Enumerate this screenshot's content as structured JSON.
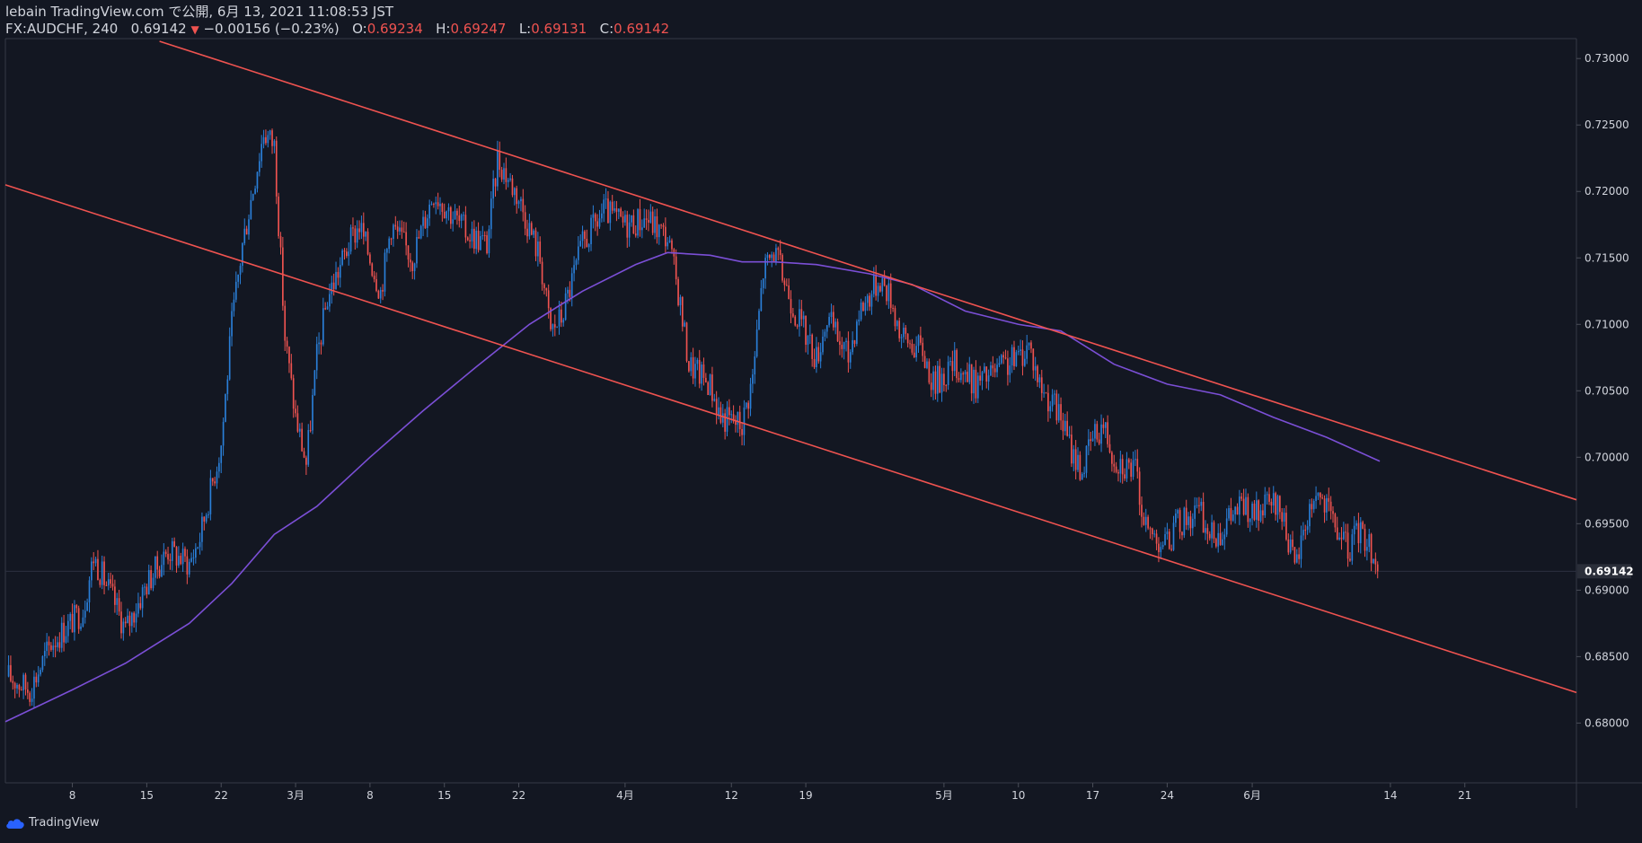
{
  "header": {
    "published": "lebain TradingView.com で公開, 6月 13, 2021 11:08:53 JST",
    "symbol": "FX:AUDCHF, 240",
    "last": "0.69142",
    "change": "−0.00156 (−0.23%)",
    "o_label": "O:",
    "o_value": "0.69234",
    "h_label": "H:",
    "h_value": "0.69247",
    "l_label": "L:",
    "l_value": "0.69131",
    "c_label": "C:",
    "c_value": "0.69142"
  },
  "footer": {
    "brand": "TradingView",
    "logo_icon": "tradingview-cloud-icon"
  },
  "colors": {
    "background": "#131722",
    "up": "#2a7fd8",
    "down": "#ef5350",
    "trendline": "#ef5350",
    "ma": "#7b4fd6",
    "axis_text": "#d1d4dc",
    "price_tag_bg": "#2a2e39"
  },
  "chart_data": {
    "type": "candlestick",
    "x_ticks": [
      {
        "label": "8",
        "day": 7
      },
      {
        "label": "15",
        "day": 14
      },
      {
        "label": "22",
        "day": 21
      },
      {
        "label": "3月",
        "day": 28
      },
      {
        "label": "8",
        "day": 35
      },
      {
        "label": "15",
        "day": 42
      },
      {
        "label": "22",
        "day": 49
      },
      {
        "label": "4月",
        "day": 59
      },
      {
        "label": "12",
        "day": 69
      },
      {
        "label": "19",
        "day": 76
      },
      {
        "label": "5月",
        "day": 89
      },
      {
        "label": "10",
        "day": 96
      },
      {
        "label": "17",
        "day": 103
      },
      {
        "label": "24",
        "day": 110
      },
      {
        "label": "6月",
        "day": 118
      },
      {
        "label": "14",
        "day": 131
      },
      {
        "label": "21",
        "day": 138
      }
    ],
    "y_ticks": [
      "0.73000",
      "0.72500",
      "0.72000",
      "0.71500",
      "0.71000",
      "0.70500",
      "0.70000",
      "0.69500",
      "0.69000",
      "0.68500",
      "0.68000"
    ],
    "ylim": [
      0.6755,
      0.7315
    ],
    "xlim_days": [
      0.7,
      148.5
    ],
    "last_price": "0.69142",
    "close_path": [
      [
        1,
        0.6835
      ],
      [
        3,
        0.6825
      ],
      [
        5,
        0.686
      ],
      [
        8,
        0.6885
      ],
      [
        9,
        0.6925
      ],
      [
        11,
        0.689
      ],
      [
        12,
        0.687
      ],
      [
        14,
        0.6905
      ],
      [
        16,
        0.693
      ],
      [
        18,
        0.692
      ],
      [
        19,
        0.694
      ],
      [
        21,
        0.701
      ],
      [
        22,
        0.71
      ],
      [
        23,
        0.716
      ],
      [
        25,
        0.7245
      ],
      [
        26,
        0.7235
      ],
      [
        27,
        0.709
      ],
      [
        28,
        0.703
      ],
      [
        29,
        0.6995
      ],
      [
        30,
        0.7075
      ],
      [
        31,
        0.712
      ],
      [
        33,
        0.716
      ],
      [
        34,
        0.7175
      ],
      [
        36,
        0.7125
      ],
      [
        37,
        0.7175
      ],
      [
        39,
        0.715
      ],
      [
        41,
        0.72
      ],
      [
        42,
        0.719
      ],
      [
        44,
        0.717
      ],
      [
        46,
        0.716
      ],
      [
        47,
        0.7225
      ],
      [
        49,
        0.7195
      ],
      [
        51,
        0.715
      ],
      [
        52,
        0.7095
      ],
      [
        53,
        0.7105
      ],
      [
        55,
        0.716
      ],
      [
        57,
        0.7185
      ],
      [
        59,
        0.7175
      ],
      [
        61,
        0.718
      ],
      [
        63,
        0.7165
      ],
      [
        64,
        0.7125
      ],
      [
        65,
        0.707
      ],
      [
        67,
        0.7055
      ],
      [
        68,
        0.703
      ],
      [
        70,
        0.7025
      ],
      [
        71,
        0.706
      ],
      [
        72,
        0.714
      ],
      [
        73,
        0.7155
      ],
      [
        75,
        0.711
      ],
      [
        77,
        0.7075
      ],
      [
        78,
        0.7105
      ],
      [
        80,
        0.7075
      ],
      [
        81,
        0.711
      ],
      [
        83,
        0.7135
      ],
      [
        84,
        0.712
      ],
      [
        85,
        0.709
      ],
      [
        87,
        0.708
      ],
      [
        88,
        0.7055
      ],
      [
        90,
        0.707
      ],
      [
        92,
        0.7055
      ],
      [
        94,
        0.7065
      ],
      [
        96,
        0.7075
      ],
      [
        97,
        0.7085
      ],
      [
        98,
        0.7055
      ],
      [
        100,
        0.703
      ],
      [
        101,
        0.7005
      ],
      [
        102,
        0.699
      ],
      [
        103,
        0.7015
      ],
      [
        104,
        0.7025
      ],
      [
        105,
        0.7
      ],
      [
        107,
        0.699
      ],
      [
        108,
        0.6945
      ],
      [
        110,
        0.6935
      ],
      [
        111,
        0.695
      ],
      [
        113,
        0.696
      ],
      [
        114,
        0.694
      ],
      [
        115,
        0.6945
      ],
      [
        117,
        0.6965
      ],
      [
        118,
        0.6955
      ],
      [
        120,
        0.6965
      ],
      [
        121,
        0.6955
      ],
      [
        122,
        0.6915
      ],
      [
        123,
        0.695
      ],
      [
        124,
        0.6975
      ],
      [
        125,
        0.696
      ],
      [
        126,
        0.6945
      ],
      [
        127,
        0.693
      ],
      [
        128,
        0.6945
      ],
      [
        129,
        0.6935
      ],
      [
        129.8,
        0.69142
      ]
    ],
    "ma_path": [
      [
        0.7,
        0.6801
      ],
      [
        7,
        0.6825
      ],
      [
        12,
        0.6845
      ],
      [
        18,
        0.6875
      ],
      [
        22,
        0.6905
      ],
      [
        26,
        0.6942
      ],
      [
        30,
        0.6963
      ],
      [
        35,
        0.7
      ],
      [
        40,
        0.7035
      ],
      [
        45,
        0.7068
      ],
      [
        50,
        0.71
      ],
      [
        55,
        0.7125
      ],
      [
        60,
        0.7145
      ],
      [
        63,
        0.7154
      ],
      [
        67,
        0.7152
      ],
      [
        70,
        0.7147
      ],
      [
        73,
        0.7147
      ],
      [
        77,
        0.7145
      ],
      [
        82,
        0.7138
      ],
      [
        86,
        0.713
      ],
      [
        91,
        0.711
      ],
      [
        96,
        0.71
      ],
      [
        100,
        0.7095
      ],
      [
        105,
        0.707
      ],
      [
        110,
        0.7055
      ],
      [
        115,
        0.7047
      ],
      [
        120,
        0.703
      ],
      [
        125,
        0.7015
      ],
      [
        130,
        0.6997
      ]
    ],
    "trendlines": [
      {
        "from": [
          15.2,
          0.7313
        ],
        "to": [
          148.5,
          0.6968
        ]
      },
      {
        "from": [
          0.7,
          0.7205
        ],
        "to": [
          148.5,
          0.6823
        ]
      }
    ]
  }
}
